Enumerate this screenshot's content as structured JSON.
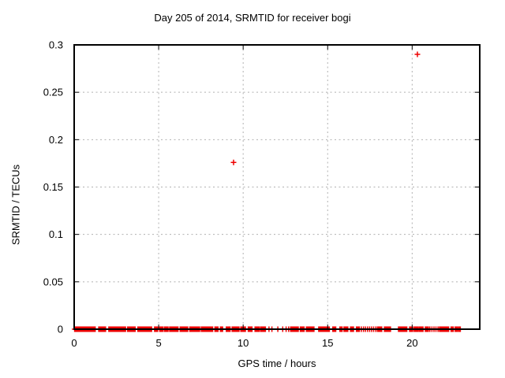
{
  "window": {
    "background": "#ffffff"
  },
  "chart_data": {
    "type": "scatter",
    "title": "Day 205 of 2014, SRMTID for receiver bogi",
    "xlabel": "GPS time / hours",
    "ylabel": "SRMTID / TECUs",
    "xlim": [
      0,
      24
    ],
    "ylim": [
      0,
      0.3
    ],
    "xticks": [
      0,
      5,
      10,
      15,
      20
    ],
    "yticks": [
      0,
      0.05,
      0.1,
      0.15,
      0.2,
      0.25,
      0.3
    ],
    "grid": true,
    "legend_position": "none",
    "marker": "plus",
    "colors": {
      "marker": "#ee0000",
      "grid": "#b0b0b0",
      "border": "#000000",
      "background": "#ffffff"
    },
    "outlier_points": [
      [
        9.43,
        0.176
      ],
      [
        20.31,
        0.29
      ]
    ],
    "baseline_value": 0.0,
    "baseline_segments": [
      [
        0.03,
        1.28
      ],
      [
        1.45,
        1.64
      ],
      [
        1.68,
        1.86
      ],
      [
        2.05,
        3.08
      ],
      [
        3.16,
        3.65
      ],
      [
        3.77,
        4.58
      ],
      [
        4.76,
        4.98
      ],
      [
        5.06,
        5.25
      ],
      [
        5.33,
        5.56
      ],
      [
        5.65,
        6.16
      ],
      [
        6.27,
        6.73
      ],
      [
        6.84,
        7.46
      ],
      [
        7.52,
        8.2
      ],
      [
        8.33,
        8.52
      ],
      [
        8.65,
        8.82
      ],
      [
        9.0,
        9.23
      ],
      [
        9.35,
        9.78
      ],
      [
        9.86,
        10.16
      ],
      [
        10.3,
        10.55
      ],
      [
        10.7,
        11.0
      ],
      [
        11.05,
        11.36
      ],
      [
        12.81,
        13.3
      ],
      [
        13.38,
        13.64
      ],
      [
        13.74,
        14.2
      ],
      [
        14.47,
        15.14
      ],
      [
        15.3,
        15.52
      ],
      [
        15.72,
        15.86
      ],
      [
        15.97,
        16.2
      ],
      [
        16.35,
        16.55
      ],
      [
        16.7,
        16.9
      ],
      [
        18.02,
        18.2
      ],
      [
        18.36,
        18.72
      ],
      [
        19.19,
        19.7
      ],
      [
        19.85,
        20.07
      ],
      [
        20.12,
        20.35
      ],
      [
        20.42,
        20.66
      ],
      [
        20.78,
        20.97
      ],
      [
        21.62,
        22.2
      ],
      [
        22.3,
        22.46
      ],
      [
        22.55,
        22.7
      ],
      [
        22.76,
        22.86
      ]
    ],
    "baseline_points": [
      11.53,
      11.7,
      12.05,
      12.34,
      12.54,
      12.69,
      17.0,
      17.12,
      17.24,
      17.36,
      17.48,
      17.6,
      17.72,
      17.85,
      17.95,
      21.05,
      21.17,
      21.29,
      21.41,
      21.53
    ]
  }
}
